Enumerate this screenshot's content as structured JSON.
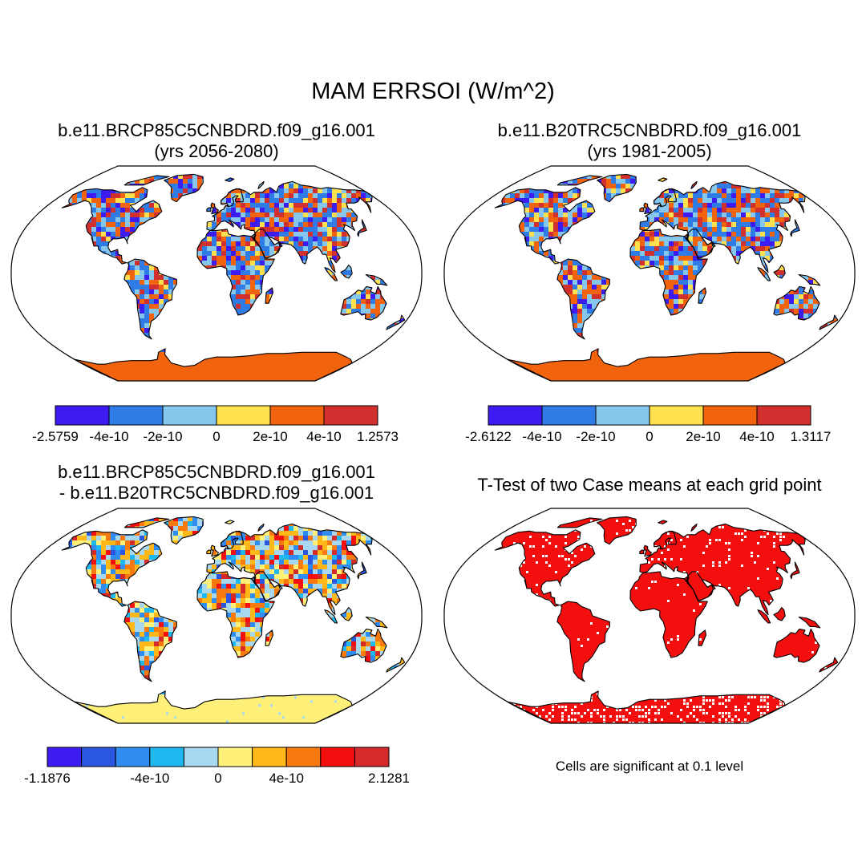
{
  "title": "MAM ERRSOI (W/m^2)",
  "panels": [
    {
      "id": "p1",
      "title_line1": "b.e11.BRCP85C5CNBDRD.f09_g16.001",
      "title_line2": "(yrs 2056-2080)",
      "colorbar": {
        "colors": [
          "#3c1cf0",
          "#2f7ce6",
          "#86c7ee",
          "#ffe14f",
          "#f2630d",
          "#d2302e"
        ],
        "labels": [
          "-2.5759",
          "-4e-10",
          "-2e-10",
          "0",
          "2e-10",
          "4e-10",
          "1.2573"
        ]
      }
    },
    {
      "id": "p2",
      "title_line1": "b.e11.B20TRC5CNBDRD.f09_g16.001",
      "title_line2": "(yrs 1981-2005)",
      "colorbar": {
        "colors": [
          "#3c1cf0",
          "#2f7ce6",
          "#86c7ee",
          "#ffe14f",
          "#f2630d",
          "#d2302e"
        ],
        "labels": [
          "-2.6122",
          "-4e-10",
          "-2e-10",
          "0",
          "2e-10",
          "4e-10",
          "1.3117"
        ]
      }
    },
    {
      "id": "p3",
      "title_line1": "b.e11.BRCP85C5CNBDRD.f09_g16.001",
      "title_line2": "- b.e11.B20TRC5CNBDRD.f09_g16.001",
      "colorbar": {
        "colors": [
          "#3c1cf0",
          "#2a56e0",
          "#2f8cf0",
          "#1fb8f0",
          "#a8d8ef",
          "#fff07a",
          "#ffb817",
          "#f87a0e",
          "#f40f0f",
          "#d42a2a"
        ],
        "labels": [
          "-1.1876",
          "-4e-10",
          "0",
          "4e-10",
          "2.1281"
        ],
        "label_boundaries": [
          0,
          3,
          5,
          7,
          10
        ]
      }
    },
    {
      "id": "p4",
      "title_line1": "T-Test of two Case means at each grid point",
      "note": "Cells are significant at 0.1 level"
    }
  ]
}
